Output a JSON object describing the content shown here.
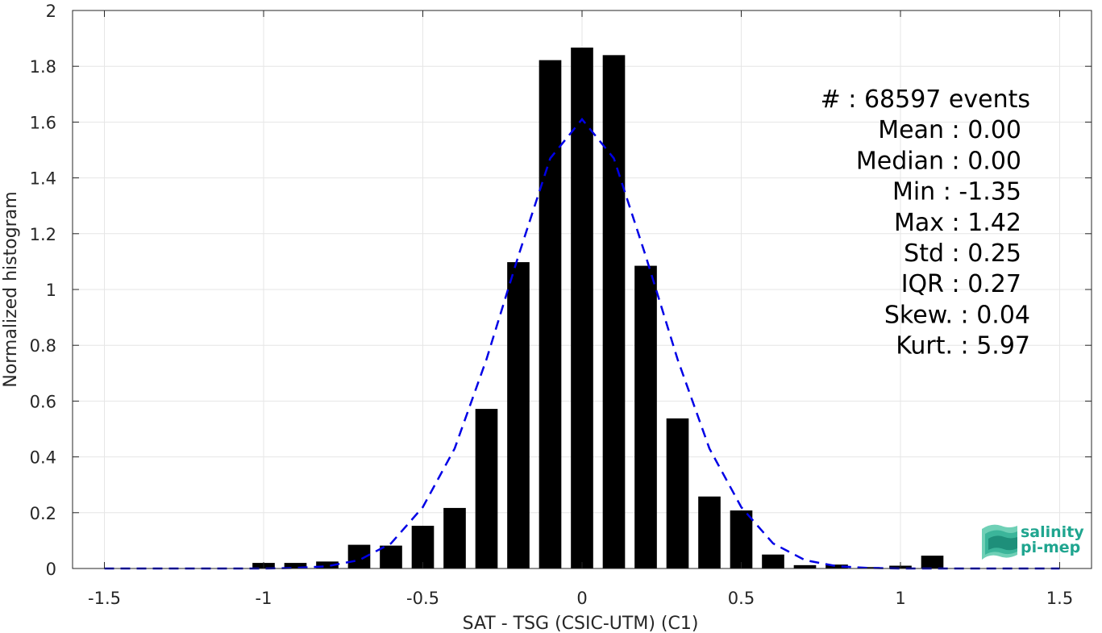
{
  "chart_data": {
    "type": "bar",
    "xlabel": "SAT - TSG (CSIC-UTM) (C1)",
    "ylabel": "Normalized histogram",
    "xlim": [
      -1.6,
      1.6
    ],
    "ylim": [
      0,
      2
    ],
    "xticks": [
      -1.5,
      -1,
      -0.5,
      0,
      0.5,
      1,
      1.5
    ],
    "xtick_labels": [
      "-1.5",
      "-1",
      "-0.5",
      "0",
      "0.5",
      "1",
      "1.5"
    ],
    "yticks": [
      0,
      0.2,
      0.4,
      0.6,
      0.8,
      1,
      1.2,
      1.4,
      1.6,
      1.8,
      2
    ],
    "ytick_labels": [
      "0",
      "0.2",
      "0.4",
      "0.6",
      "0.8",
      "1",
      "1.2",
      "1.4",
      "1.6",
      "1.8",
      "2"
    ],
    "grid": true,
    "bar_width": 0.07,
    "bars": {
      "x": [
        -1.0,
        -0.9,
        -0.8,
        -0.7,
        -0.6,
        -0.5,
        -0.4,
        -0.3,
        -0.2,
        -0.1,
        0.0,
        0.1,
        0.2,
        0.3,
        0.4,
        0.5,
        0.6,
        0.7,
        0.8,
        0.9,
        1.0,
        1.1
      ],
      "y": [
        0.02,
        0.02,
        0.025,
        0.085,
        0.082,
        0.153,
        0.217,
        0.572,
        1.098,
        1.822,
        1.867,
        1.84,
        1.085,
        0.538,
        0.258,
        0.208,
        0.05,
        0.012,
        0.014,
        0.005,
        0.01,
        0.046
      ],
      "color": "#000000"
    },
    "fit_curve": {
      "style": "dashed",
      "color": "#0000e6",
      "x": [
        -1.5,
        -1.4,
        -1.3,
        -1.2,
        -1.1,
        -1.0,
        -0.9,
        -0.8,
        -0.7,
        -0.6,
        -0.5,
        -0.4,
        -0.3,
        -0.2,
        -0.1,
        0.0,
        0.1,
        0.2,
        0.3,
        0.4,
        0.5,
        0.6,
        0.7,
        0.8,
        0.9,
        1.0,
        1.1,
        1.2,
        1.3,
        1.4,
        1.5
      ],
      "y": [
        0.0,
        0.0,
        0.0,
        0.0,
        0.0,
        0.0,
        0.002,
        0.008,
        0.03,
        0.09,
        0.22,
        0.43,
        0.75,
        1.12,
        1.47,
        1.61,
        1.47,
        1.12,
        0.75,
        0.43,
        0.22,
        0.09,
        0.03,
        0.008,
        0.002,
        0.0,
        0.0,
        0.0,
        0.0,
        0.0,
        0.0
      ]
    }
  },
  "stats": [
    "#  : 68597 events",
    "Mean : 0.00",
    "Median : 0.00",
    "Min : -1.35",
    "Max : 1.42",
    "Std : 0.25",
    "IQR : 0.27",
    "Skew. : 0.04",
    "Kurt. : 5.97"
  ],
  "logo": {
    "line1": "salinity",
    "line2": "pi-mep"
  }
}
